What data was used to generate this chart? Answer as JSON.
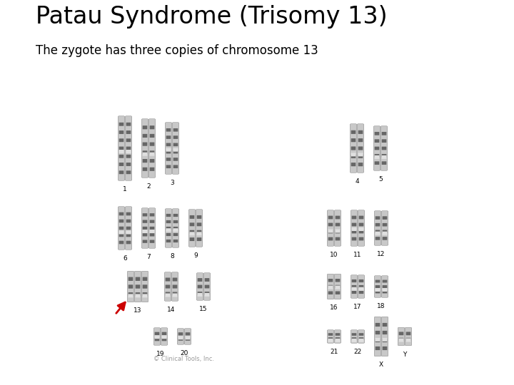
{
  "title": "Patau Syndrome (Trisomy 13)",
  "subtitle": "The zygote has three copies of chromosome 13",
  "title_fontsize": 24,
  "subtitle_fontsize": 12,
  "background_color": "#ffffff",
  "title_color": "#000000",
  "subtitle_color": "#000000",
  "copyright_text": "© Clinical Tools, Inc.",
  "copyright_fontsize": 6,
  "copyright_color": "#999999",
  "arrow_color": "#cc0000",
  "chrom_color": "#888888",
  "band_color": "#444444",
  "chrom_bg": "#cccccc"
}
